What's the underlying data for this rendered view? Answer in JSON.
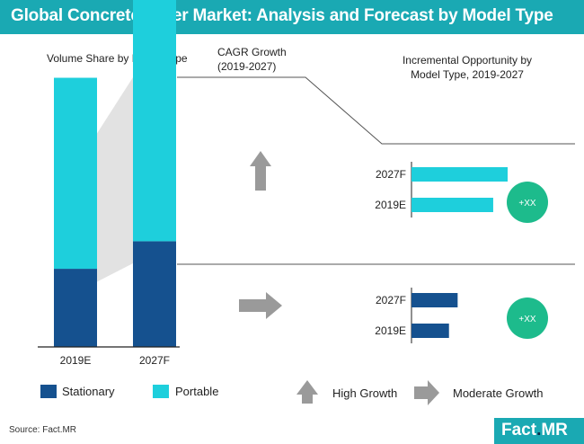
{
  "header": {
    "title": "Global Concrete Mixer Market: Analysis and Forecast by Model Type"
  },
  "labels": {
    "volume_share": "Volume Share by Model Type",
    "cagr_line1": "CAGR Growth",
    "cagr_line2": "(2019-2027)",
    "incremental_line1": "Incremental Opportunity by",
    "incremental_line2": "Model Type, 2019-2027",
    "opportunity_portable": "+XX",
    "opportunity_stationary": "+XX"
  },
  "legend": {
    "stationary": "Stationary",
    "portable": "Portable",
    "high_growth": "High Growth",
    "moderate_growth": "Moderate Growth"
  },
  "source": "Source: Fact.MR",
  "logo": {
    "main": "Fact",
    "dot": ".",
    "suffix": "MR"
  },
  "colors": {
    "stationary": "#15518f",
    "portable": "#1ecfdc",
    "accent": "#1aa9b3",
    "arrow": "#9a9a9a",
    "badge": "#1dbb8c"
  },
  "chart_data": [
    {
      "type": "bar",
      "title": "Volume Share by Model Type",
      "categories": [
        "2019E",
        "2027F"
      ],
      "series": [
        {
          "name": "Stationary",
          "values": [
            20.7,
            28
          ]
        },
        {
          "name": "Portable",
          "values": [
            50.6,
            67
          ]
        }
      ],
      "ylim": [
        0,
        100
      ]
    },
    {
      "type": "bar",
      "title": "Incremental Opportunity by Model Type, 2019-2027",
      "segment": "Portable",
      "growth": "High Growth",
      "categories": [
        "2027F",
        "2019E"
      ],
      "values": [
        100,
        85
      ]
    },
    {
      "type": "bar",
      "title": "Incremental Opportunity by Model Type, 2019-2027",
      "segment": "Stationary",
      "growth": "Moderate Growth",
      "categories": [
        "2027F",
        "2019E"
      ],
      "values": [
        48,
        39
      ]
    }
  ]
}
